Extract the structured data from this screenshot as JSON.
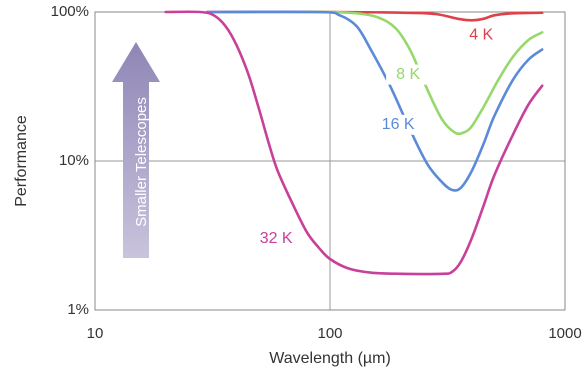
{
  "chart_data": {
    "type": "line",
    "title": "",
    "xlabel": "Wavelength (µm)",
    "ylabel": "Performance",
    "x_scale": "log",
    "y_scale": "log",
    "xlim": [
      10,
      1000
    ],
    "ylim": [
      0.01,
      1
    ],
    "x_ticks": [
      "10",
      "100",
      "1000"
    ],
    "y_ticks": [
      "1%",
      "10%",
      "100%"
    ],
    "grid": true,
    "annotation": "Smaller Telescopes",
    "series": [
      {
        "name": "4 K",
        "color": "#e0404a",
        "points": [
          [
            30,
            1
          ],
          [
            100,
            1
          ],
          [
            200,
            0.99
          ],
          [
            280,
            0.97
          ],
          [
            350,
            0.9
          ],
          [
            400,
            0.88
          ],
          [
            450,
            0.9
          ],
          [
            500,
            0.95
          ],
          [
            600,
            0.98
          ],
          [
            800,
            0.99
          ]
        ]
      },
      {
        "name": "8 K",
        "color": "#96d86a",
        "points": [
          [
            80,
            1
          ],
          [
            100,
            1
          ],
          [
            130,
            0.98
          ],
          [
            160,
            0.92
          ],
          [
            190,
            0.78
          ],
          [
            220,
            0.55
          ],
          [
            260,
            0.3
          ],
          [
            300,
            0.19
          ],
          [
            340,
            0.155
          ],
          [
            370,
            0.155
          ],
          [
            400,
            0.17
          ],
          [
            450,
            0.23
          ],
          [
            520,
            0.35
          ],
          [
            600,
            0.5
          ],
          [
            700,
            0.65
          ],
          [
            800,
            0.73
          ]
        ]
      },
      {
        "name": "16 K",
        "color": "#5b8bd8",
        "points": [
          [
            30,
            1
          ],
          [
            90,
            1
          ],
          [
            110,
            0.95
          ],
          [
            130,
            0.8
          ],
          [
            150,
            0.55
          ],
          [
            180,
            0.32
          ],
          [
            220,
            0.16
          ],
          [
            260,
            0.095
          ],
          [
            300,
            0.072
          ],
          [
            330,
            0.064
          ],
          [
            360,
            0.066
          ],
          [
            400,
            0.085
          ],
          [
            450,
            0.13
          ],
          [
            500,
            0.2
          ],
          [
            600,
            0.35
          ],
          [
            700,
            0.48
          ],
          [
            800,
            0.56
          ]
        ]
      },
      {
        "name": "32 K",
        "color": "#c8409a",
        "points": [
          [
            20,
            1
          ],
          [
            28,
            1
          ],
          [
            32,
            0.95
          ],
          [
            36,
            0.8
          ],
          [
            40,
            0.6
          ],
          [
            45,
            0.38
          ],
          [
            50,
            0.22
          ],
          [
            55,
            0.13
          ],
          [
            60,
            0.085
          ],
          [
            70,
            0.05
          ],
          [
            80,
            0.033
          ],
          [
            90,
            0.026
          ],
          [
            100,
            0.022
          ],
          [
            120,
            0.019
          ],
          [
            150,
            0.0178
          ],
          [
            200,
            0.0175
          ],
          [
            300,
            0.0175
          ],
          [
            330,
            0.018
          ],
          [
            360,
            0.021
          ],
          [
            400,
            0.03
          ],
          [
            450,
            0.05
          ],
          [
            500,
            0.08
          ],
          [
            600,
            0.15
          ],
          [
            700,
            0.24
          ],
          [
            800,
            0.32
          ]
        ]
      }
    ]
  }
}
